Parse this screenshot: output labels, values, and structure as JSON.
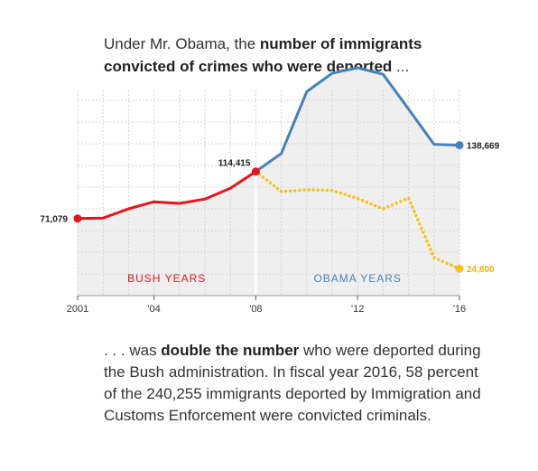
{
  "headline": {
    "part1": "Under Mr. Obama, the ",
    "bold": "number of immigrants convicted of crimes who were deported",
    "part2": " ..."
  },
  "caption": {
    "part1": ". . . was ",
    "bold": "double the number",
    "part2": " who were deported during the Bush administration. In fiscal year 2016, 58 percent of the 240,255 immigrants deported by Immigration and Customs Enforcement were convicted criminals."
  },
  "chart_data": {
    "type": "line",
    "x": [
      2001,
      2002,
      2003,
      2004,
      2005,
      2006,
      2007,
      2008,
      2009,
      2010,
      2011,
      2012,
      2013,
      2014,
      2015,
      2016
    ],
    "xlim": [
      2001,
      2016
    ],
    "ylim": [
      0,
      200000
    ],
    "grid": true,
    "series": [
      {
        "key": "bush",
        "values": [
          71079,
          71500,
          80000,
          86500,
          85000,
          89000,
          99000,
          114415,
          null,
          null,
          null,
          null,
          null,
          null,
          null,
          null
        ],
        "color": "#e8131b",
        "style": "solid"
      },
      {
        "key": "obama",
        "values": [
          null,
          null,
          null,
          null,
          null,
          null,
          null,
          114415,
          131000,
          188000,
          205000,
          210000,
          204000,
          172000,
          139500,
          138669
        ],
        "color": "#4682b8",
        "style": "solid"
      },
      {
        "key": "other",
        "values": [
          null,
          null,
          null,
          null,
          null,
          null,
          null,
          114415,
          96000,
          97500,
          97000,
          89500,
          80000,
          90000,
          35000,
          24800
        ],
        "color": "#f9c21b",
        "style": "dotted"
      }
    ],
    "xtick_labels": [
      {
        "x": 2001,
        "label": "2001"
      },
      {
        "x": 2004,
        "label": "'04"
      },
      {
        "x": 2008,
        "label": "'08"
      },
      {
        "x": 2012,
        "label": "'12"
      },
      {
        "x": 2016,
        "label": "'16"
      }
    ],
    "data_labels": [
      {
        "series": "bush",
        "x": 2001,
        "label": "71,079",
        "color": "#222222",
        "pos": "left"
      },
      {
        "series": "bush",
        "x": 2008,
        "label": "114,415",
        "color": "#222222",
        "pos": "above-left"
      },
      {
        "series": "obama",
        "x": 2016,
        "label": "138,669",
        "color": "#222222",
        "pos": "right"
      },
      {
        "series": "other",
        "x": 2016,
        "label": "24,800",
        "color": "#f0b400",
        "pos": "right"
      }
    ],
    "annotations": [
      {
        "text": "BUSH YEARS",
        "color": "#e8131b",
        "x": 2004.5
      },
      {
        "text": "OBAMA YEARS",
        "color": "#4682b8",
        "x": 2012
      }
    ],
    "area_fill": "#efefef"
  }
}
